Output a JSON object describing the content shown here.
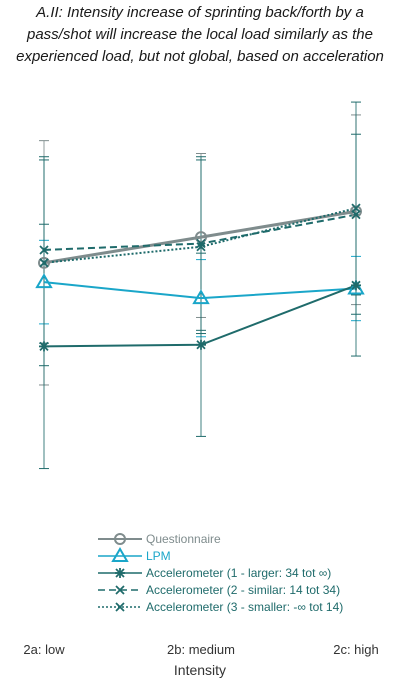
{
  "chart_data": {
    "type": "line",
    "title_lines": [
      "A.II: Intensity increase of sprinting back/forth by a",
      "pass/shot will increase the local load similarly as the",
      "experienced load, but not global, based on acceleration"
    ],
    "xlabel": "Intensity",
    "ylabel": "",
    "categories": [
      "2a: low",
      "2b: medium",
      "2c: high"
    ],
    "grid": false,
    "legend_position": "bottom",
    "series": [
      {
        "name": "Questionnaire",
        "values": [
          0.7,
          0.78,
          0.86
        ],
        "color": "#7f8c8d",
        "line": "solid",
        "marker": "circle",
        "error_low": [
          0.32,
          0.53,
          0.57
        ],
        "error_high": [
          1.08,
          1.04,
          1.16
        ]
      },
      {
        "name": "LPM",
        "values": [
          0.64,
          0.59,
          0.62
        ],
        "color": "#1aa6c9",
        "line": "solid",
        "marker": "triangle",
        "error_low": [
          0.51,
          0.47,
          0.52
        ],
        "error_high": [
          0.77,
          0.71,
          0.72
        ]
      },
      {
        "name": "Accelerometer (1 - larger: 34 tot ∞)",
        "values": [
          0.44,
          0.445,
          0.63
        ],
        "color": "#1f6b6b",
        "line": "solid",
        "marker": "star",
        "error_low": [
          0.06,
          0.16,
          0.41
        ],
        "error_high": [
          0.82,
          0.73,
          0.85
        ]
      },
      {
        "name": "Accelerometer (2 - similar: 14 tot 34)",
        "values": [
          0.74,
          0.76,
          0.85
        ],
        "color": "#1f6b6b",
        "line": "dashed",
        "marker": "x",
        "error_low": [
          0.45,
          0.49,
          0.6
        ],
        "error_high": [
          1.03,
          1.03,
          1.1
        ]
      },
      {
        "name": "Accelerometer (3 - smaller: -∞ tot 14)",
        "values": [
          0.7,
          0.75,
          0.87
        ],
        "color": "#1f6b6b",
        "line": "dotted",
        "marker": "x",
        "error_low": [
          0.38,
          0.48,
          0.54
        ],
        "error_high": [
          1.02,
          1.02,
          1.2
        ]
      }
    ],
    "ylim": [
      -0.1,
      1.25
    ]
  }
}
